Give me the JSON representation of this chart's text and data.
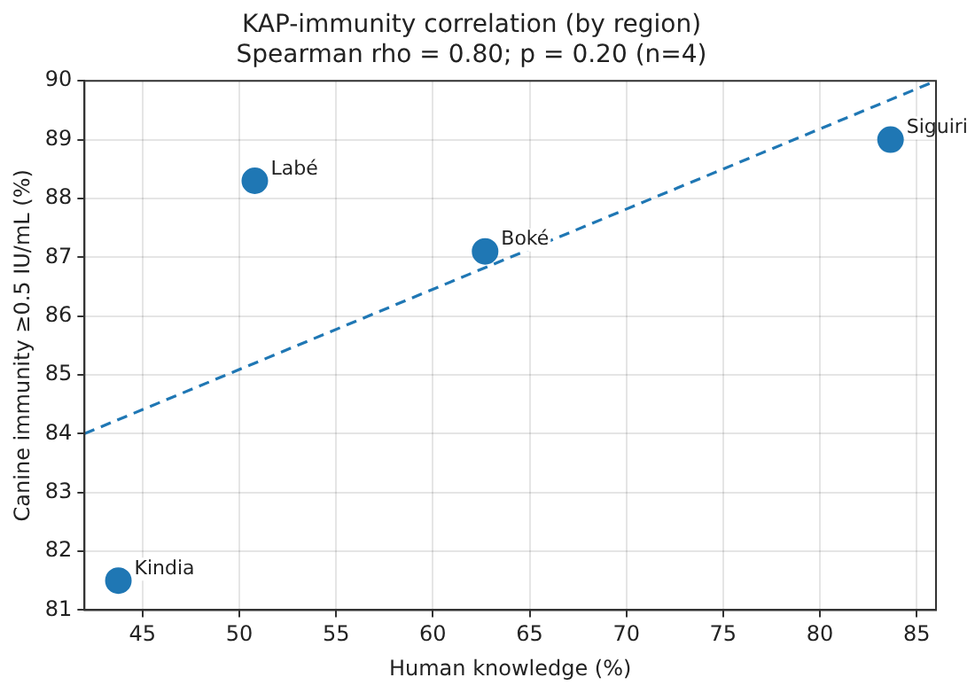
{
  "chart_data": {
    "type": "scatter",
    "title": "KAP-immunity correlation (by region)",
    "subtitle": "Spearman rho = 0.80; p = 0.20 (n=4)",
    "xlabel": "Human knowledge (%)",
    "ylabel": "Canine immunity ≥0.5 IU/mL (%)",
    "series": [
      {
        "type": "scatter",
        "color": "#1f77b4",
        "x": [
          43.75,
          50.8,
          62.7,
          83.65
        ],
        "values": [
          81.5,
          88.3,
          87.1,
          89.0
        ],
        "marker": "circle"
      },
      {
        "type": "line",
        "color": "#1f77b4",
        "x": [
          42,
          86
        ],
        "values": [
          84,
          90
        ],
        "line_style": "dashed",
        "marker": "none"
      }
    ],
    "annotations": [
      {
        "text": "Kindia",
        "x": 43.75,
        "y": 81.5
      },
      {
        "text": "Labé",
        "x": 50.8,
        "y": 88.3
      },
      {
        "text": "Boké",
        "x": 62.7,
        "y": 87.1
      },
      {
        "text": "Siguiri",
        "x": 83.65,
        "y": 89.0
      }
    ],
    "xlim": [
      42,
      86
    ],
    "xticks": [
      45,
      50,
      55,
      60,
      65,
      70,
      75,
      80,
      85
    ],
    "ylim": [
      81,
      90
    ],
    "yticks": [
      81,
      82,
      83,
      84,
      85,
      86,
      87,
      88,
      89,
      90
    ],
    "grid": true,
    "legend": false
  }
}
